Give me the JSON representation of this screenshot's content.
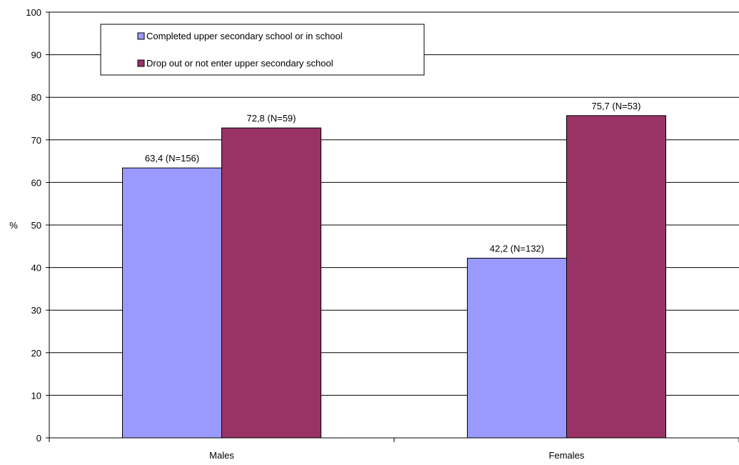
{
  "chart_data": {
    "type": "bar",
    "categories": [
      "Males",
      "Females"
    ],
    "series": [
      {
        "name": "Completed upper secondary school or in school",
        "color": "#9999ff",
        "values": [
          63.4,
          42.2
        ],
        "labels": [
          "63,4 (N=156)",
          "42,2 (N=132)"
        ]
      },
      {
        "name": "Drop out or not enter upper secondary school",
        "color": "#993366",
        "values": [
          72.8,
          75.7
        ],
        "labels": [
          "72,8 (N=59)",
          "75,7 (N=53)"
        ]
      }
    ],
    "ylabel": "%",
    "ylim": [
      0,
      100
    ],
    "yticks": [
      "0",
      "10",
      "20",
      "30",
      "40",
      "50",
      "60",
      "70",
      "80",
      "90",
      "100"
    ],
    "grid": true,
    "legend_position": "top-left"
  }
}
